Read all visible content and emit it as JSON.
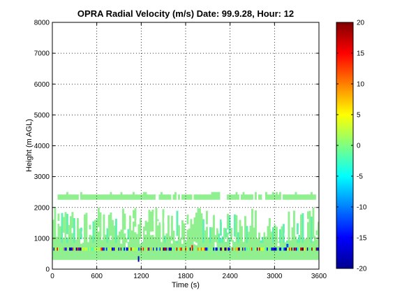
{
  "chart_data": {
    "type": "heatmap",
    "title": "OPRA Radial Velocity (m/s)  Date: 99.9.28, Hour: 12",
    "xlabel": "Time (s)",
    "ylabel": "Height (m AGL)",
    "xlim": [
      0,
      3600
    ],
    "ylim": [
      0,
      8000
    ],
    "xticks": [
      0,
      600,
      1200,
      1800,
      2400,
      3000,
      3600
    ],
    "xtick_labels": [
      "0",
      "600",
      "1200",
      "1800",
      "2400",
      "3000",
      "3600"
    ],
    "yticks": [
      0,
      1000,
      2000,
      3000,
      4000,
      5000,
      6000,
      7000,
      8000
    ],
    "ytick_labels": [
      "0",
      "1000",
      "2000",
      "3000",
      "4000",
      "5000",
      "6000",
      "7000",
      "8000"
    ],
    "grid": true,
    "grid_style": "dotted",
    "colorbar": {
      "range": [
        -20,
        20
      ],
      "ticks": [
        20,
        15,
        10,
        5,
        0,
        -5,
        -10,
        -15,
        -20
      ],
      "tick_labels": [
        "20",
        "15",
        "10",
        "5",
        "0",
        "-5",
        "-10",
        "-15",
        "-20"
      ],
      "colormap": "jet"
    },
    "layers": [
      {
        "height_range": [
          300,
          850
        ],
        "typical_velocity": 0,
        "coverage": "continuous"
      },
      {
        "height_range": [
          850,
          2000
        ],
        "typical_velocity": 0,
        "coverage": "intermittent"
      },
      {
        "height_range": [
          2250,
          2420
        ],
        "typical_velocity": 0,
        "coverage": "intermittent with gaps"
      },
      {
        "height_range": [
          600,
          700
        ],
        "typical_velocity": "mixed -20 to 20",
        "coverage": "continuous strip"
      }
    ]
  }
}
